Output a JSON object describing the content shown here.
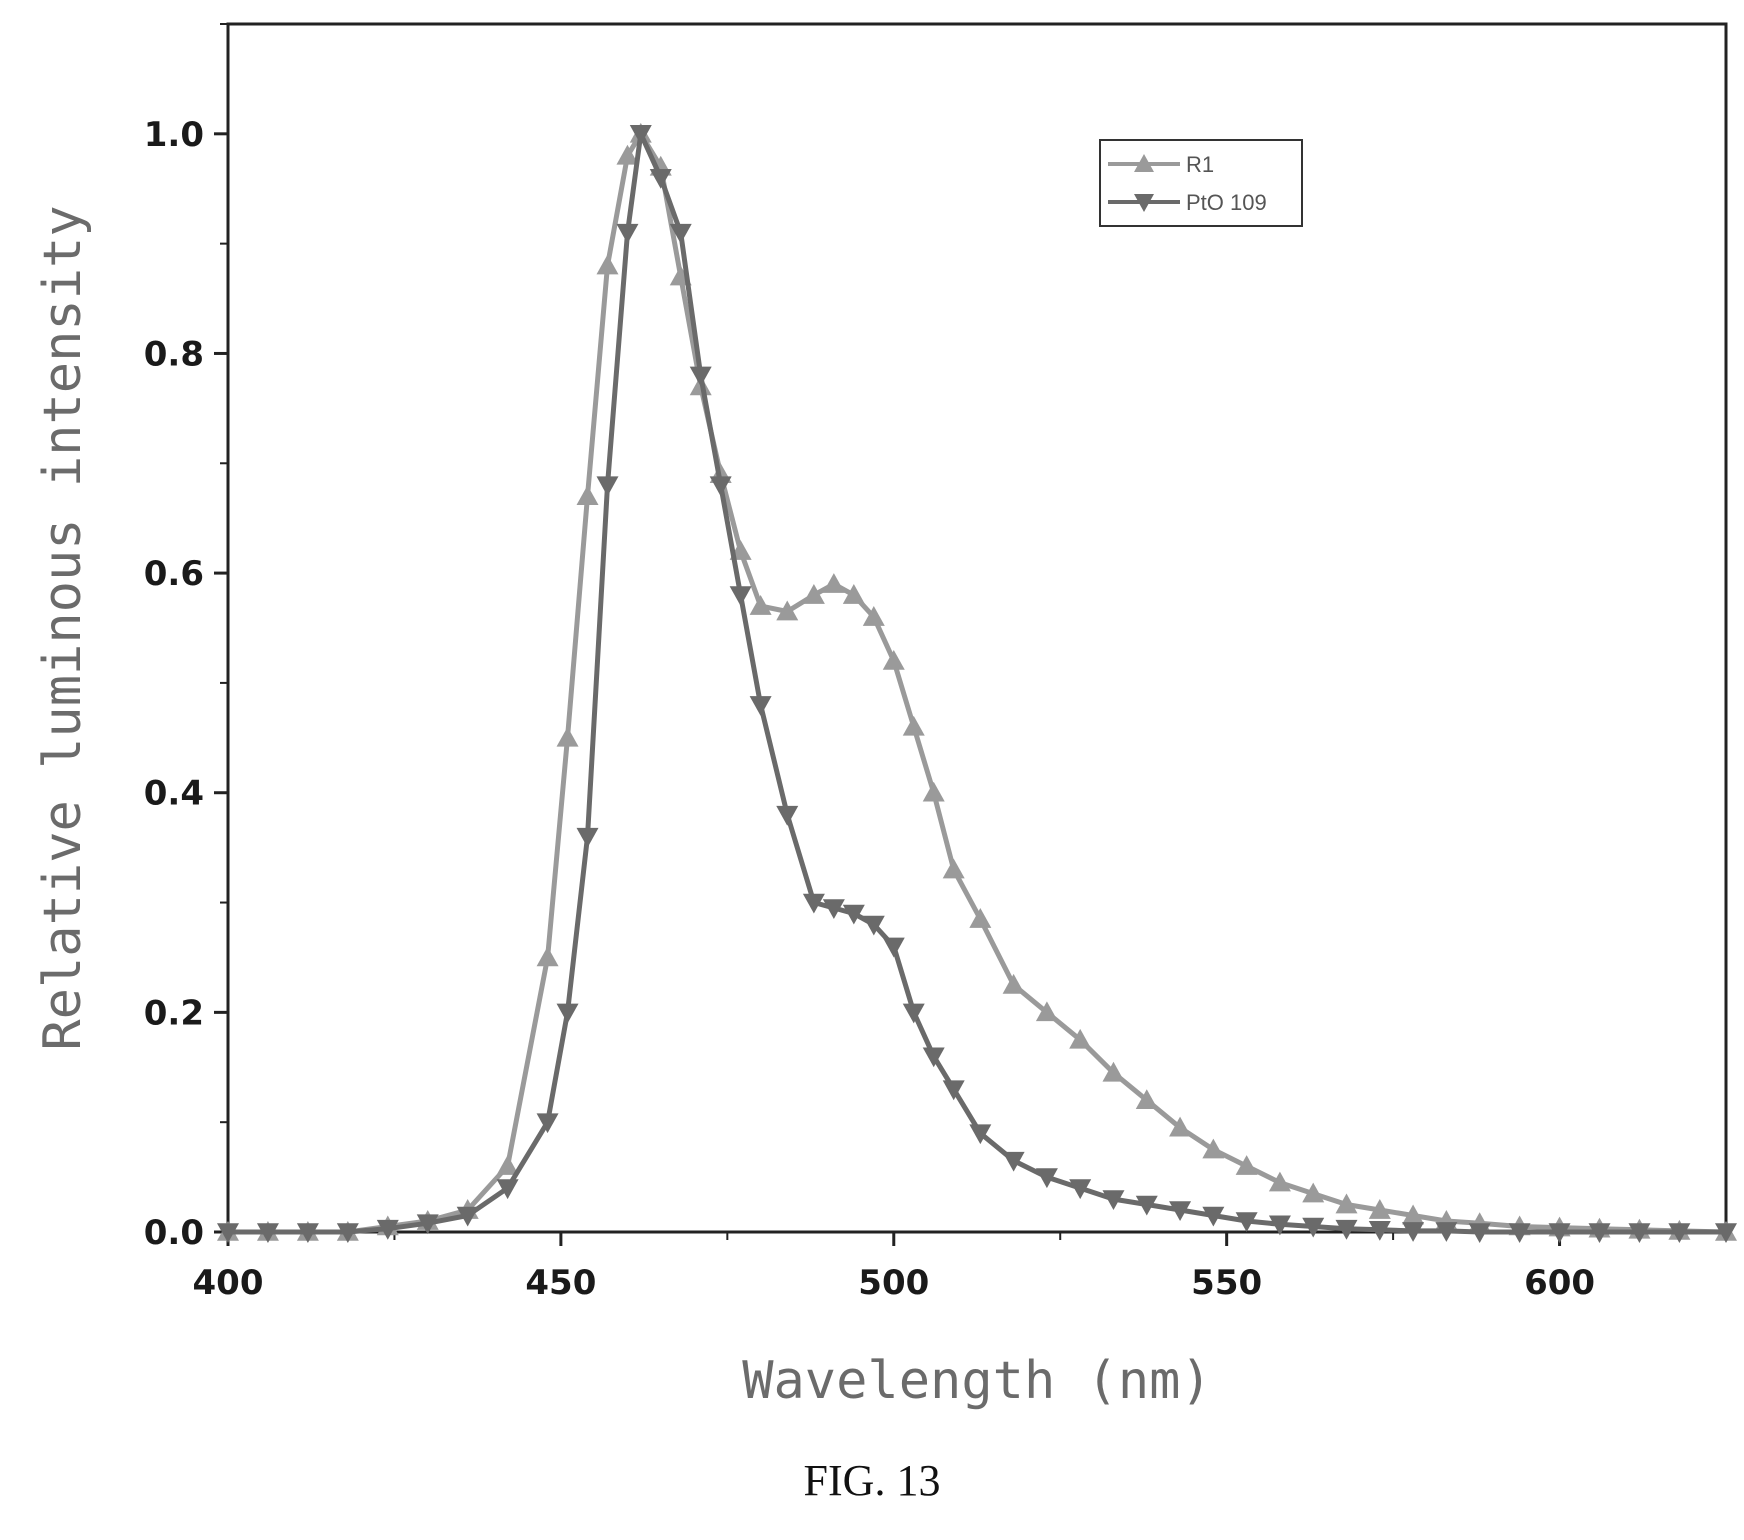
{
  "figure_caption": "FIG. 13",
  "colors": {
    "r1": "#9a9a9a",
    "pio109": "#6a6a6a",
    "axis": "#222222"
  },
  "chart_data": {
    "type": "line",
    "xlabel": "Wavelength (nm)",
    "ylabel": "Relative luminous intensity",
    "xlim": [
      400,
      625
    ],
    "ylim": [
      0,
      1.1
    ],
    "xticks": [
      400,
      450,
      500,
      550,
      600
    ],
    "xtick_labels": [
      "400",
      "450",
      "500",
      "550",
      "600"
    ],
    "yticks": [
      0,
      0.2,
      0.4,
      0.6,
      0.8,
      1.0
    ],
    "ytick_labels": [
      "0.0",
      "0.2",
      "0.4",
      "0.6",
      "0.8",
      "1.0"
    ],
    "legend_position": "top-center",
    "series": [
      {
        "name": "R1",
        "marker": "triangle-up",
        "x": [
          400,
          406,
          412,
          418,
          424,
          430,
          436,
          442,
          448,
          451,
          454,
          457,
          460,
          462,
          465,
          468,
          471,
          474,
          477,
          480,
          484,
          488,
          491,
          494,
          497,
          500,
          503,
          506,
          509,
          513,
          518,
          523,
          528,
          533,
          538,
          543,
          548,
          553,
          558,
          563,
          568,
          573,
          578,
          583,
          588,
          594,
          600,
          606,
          612,
          618,
          625
        ],
        "y": [
          0.0,
          0.0,
          0.0,
          0.0,
          0.005,
          0.01,
          0.02,
          0.06,
          0.25,
          0.45,
          0.67,
          0.88,
          0.98,
          1.0,
          0.97,
          0.87,
          0.77,
          0.69,
          0.62,
          0.57,
          0.565,
          0.58,
          0.59,
          0.58,
          0.56,
          0.52,
          0.46,
          0.4,
          0.33,
          0.285,
          0.225,
          0.2,
          0.175,
          0.145,
          0.12,
          0.095,
          0.075,
          0.06,
          0.045,
          0.035,
          0.025,
          0.02,
          0.015,
          0.01,
          0.008,
          0.005,
          0.004,
          0.003,
          0.002,
          0.001,
          0.0
        ]
      },
      {
        "name": "PtO 109",
        "marker": "triangle-down",
        "x": [
          400,
          406,
          412,
          418,
          424,
          430,
          436,
          442,
          448,
          451,
          454,
          457,
          460,
          462,
          465,
          468,
          471,
          474,
          477,
          480,
          484,
          488,
          491,
          494,
          497,
          500,
          503,
          506,
          509,
          513,
          518,
          523,
          528,
          533,
          538,
          543,
          548,
          553,
          558,
          563,
          568,
          573,
          578,
          583,
          588,
          594,
          600,
          606,
          612,
          618,
          625
        ],
        "y": [
          0.0,
          0.0,
          0.0,
          0.0,
          0.003,
          0.008,
          0.015,
          0.04,
          0.1,
          0.2,
          0.36,
          0.68,
          0.91,
          1.0,
          0.96,
          0.91,
          0.78,
          0.68,
          0.58,
          0.48,
          0.38,
          0.3,
          0.295,
          0.29,
          0.28,
          0.26,
          0.2,
          0.16,
          0.13,
          0.09,
          0.065,
          0.05,
          0.04,
          0.03,
          0.025,
          0.02,
          0.015,
          0.01,
          0.007,
          0.005,
          0.003,
          0.002,
          0.001,
          0.001,
          0.0,
          0.0,
          0.0,
          0.0,
          0.0,
          0.0,
          0.0
        ]
      }
    ]
  }
}
